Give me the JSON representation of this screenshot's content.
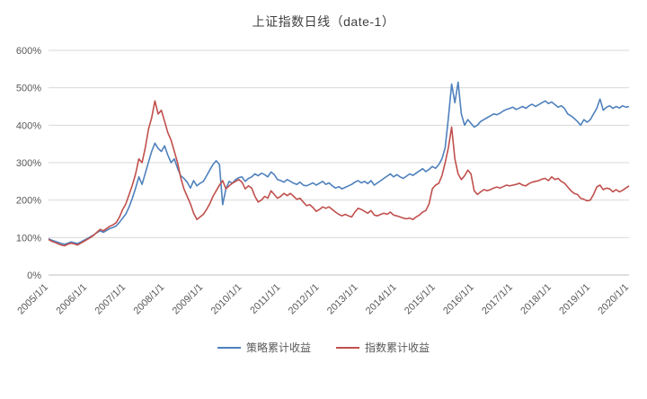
{
  "chart_data": {
    "type": "line",
    "title": "上证指数日线（date-1）",
    "grid": true,
    "legend_position": "bottom",
    "ylim": [
      0,
      600
    ],
    "y_ticks": [
      0,
      100,
      200,
      300,
      400,
      500,
      600
    ],
    "y_tick_suffix": "%",
    "x_tick_labels": [
      "2005/1/1",
      "2006/1/1",
      "2007/1/1",
      "2008/1/1",
      "2009/1/1",
      "2010/1/1",
      "2011/1/1",
      "2012/1/1",
      "2013/1/1",
      "2014/1/1",
      "2015/1/1",
      "2016/1/1",
      "2017/1/1",
      "2018/1/1",
      "2019/1/1",
      "2020/1/1"
    ],
    "x_note": "monthly samples, 2005/01 through 2020/01, values in percent",
    "series": [
      {
        "name": "策略累计收益",
        "color": "#4f81bd",
        "values": [
          97,
          93,
          90,
          87,
          84,
          82,
          85,
          88,
          86,
          84,
          88,
          93,
          97,
          102,
          107,
          113,
          118,
          114,
          119,
          124,
          127,
          131,
          141,
          152,
          163,
          182,
          205,
          232,
          262,
          242,
          272,
          302,
          330,
          352,
          338,
          330,
          345,
          320,
          300,
          310,
          285,
          265,
          258,
          248,
          232,
          252,
          238,
          245,
          250,
          265,
          280,
          295,
          305,
          295,
          188,
          230,
          250,
          245,
          255,
          260,
          262,
          250,
          258,
          262,
          270,
          265,
          272,
          268,
          262,
          275,
          268,
          255,
          252,
          248,
          255,
          250,
          245,
          242,
          248,
          240,
          238,
          242,
          246,
          240,
          245,
          250,
          242,
          246,
          238,
          232,
          236,
          230,
          234,
          238,
          242,
          248,
          252,
          246,
          250,
          244,
          252,
          240,
          246,
          252,
          258,
          264,
          270,
          262,
          268,
          262,
          258,
          264,
          270,
          266,
          272,
          278,
          284,
          276,
          282,
          290,
          285,
          295,
          310,
          340,
          420,
          510,
          460,
          515,
          430,
          400,
          415,
          405,
          395,
          400,
          410,
          415,
          420,
          425,
          430,
          428,
          432,
          438,
          442,
          445,
          448,
          442,
          446,
          450,
          445,
          452,
          456,
          450,
          455,
          460,
          465,
          458,
          462,
          455,
          448,
          452,
          445,
          430,
          425,
          418,
          410,
          400,
          415,
          408,
          415,
          430,
          445,
          470,
          440,
          448,
          452,
          445,
          450,
          446,
          452,
          448,
          450
        ]
      },
      {
        "name": "指数累计收益",
        "color": "#c0504d",
        "values": [
          95,
          90,
          87,
          83,
          80,
          78,
          82,
          85,
          83,
          80,
          85,
          90,
          95,
          100,
          106,
          114,
          122,
          118,
          124,
          130,
          134,
          140,
          155,
          175,
          190,
          215,
          240,
          270,
          310,
          300,
          340,
          390,
          420,
          465,
          430,
          440,
          410,
          380,
          360,
          330,
          300,
          260,
          230,
          210,
          190,
          165,
          148,
          155,
          162,
          175,
          190,
          210,
          225,
          240,
          252,
          230,
          238,
          245,
          250,
          255,
          248,
          230,
          238,
          232,
          210,
          195,
          200,
          210,
          205,
          225,
          215,
          205,
          210,
          218,
          212,
          218,
          210,
          202,
          205,
          195,
          185,
          188,
          180,
          170,
          175,
          182,
          178,
          182,
          175,
          168,
          162,
          158,
          162,
          158,
          155,
          168,
          178,
          175,
          170,
          165,
          172,
          160,
          158,
          162,
          165,
          162,
          168,
          160,
          158,
          155,
          152,
          150,
          152,
          148,
          155,
          160,
          168,
          172,
          190,
          230,
          240,
          245,
          265,
          300,
          340,
          395,
          310,
          270,
          255,
          265,
          280,
          270,
          225,
          215,
          222,
          228,
          225,
          228,
          232,
          235,
          232,
          236,
          240,
          238,
          240,
          242,
          245,
          240,
          238,
          244,
          248,
          250,
          252,
          256,
          258,
          252,
          262,
          255,
          258,
          250,
          245,
          235,
          225,
          218,
          215,
          205,
          202,
          198,
          200,
          215,
          235,
          240,
          228,
          232,
          230,
          222,
          228,
          222,
          226,
          232,
          238
        ]
      }
    ]
  },
  "legend": {
    "items": [
      {
        "label": "策略累计收益"
      },
      {
        "label": "指数累计收益"
      }
    ]
  }
}
